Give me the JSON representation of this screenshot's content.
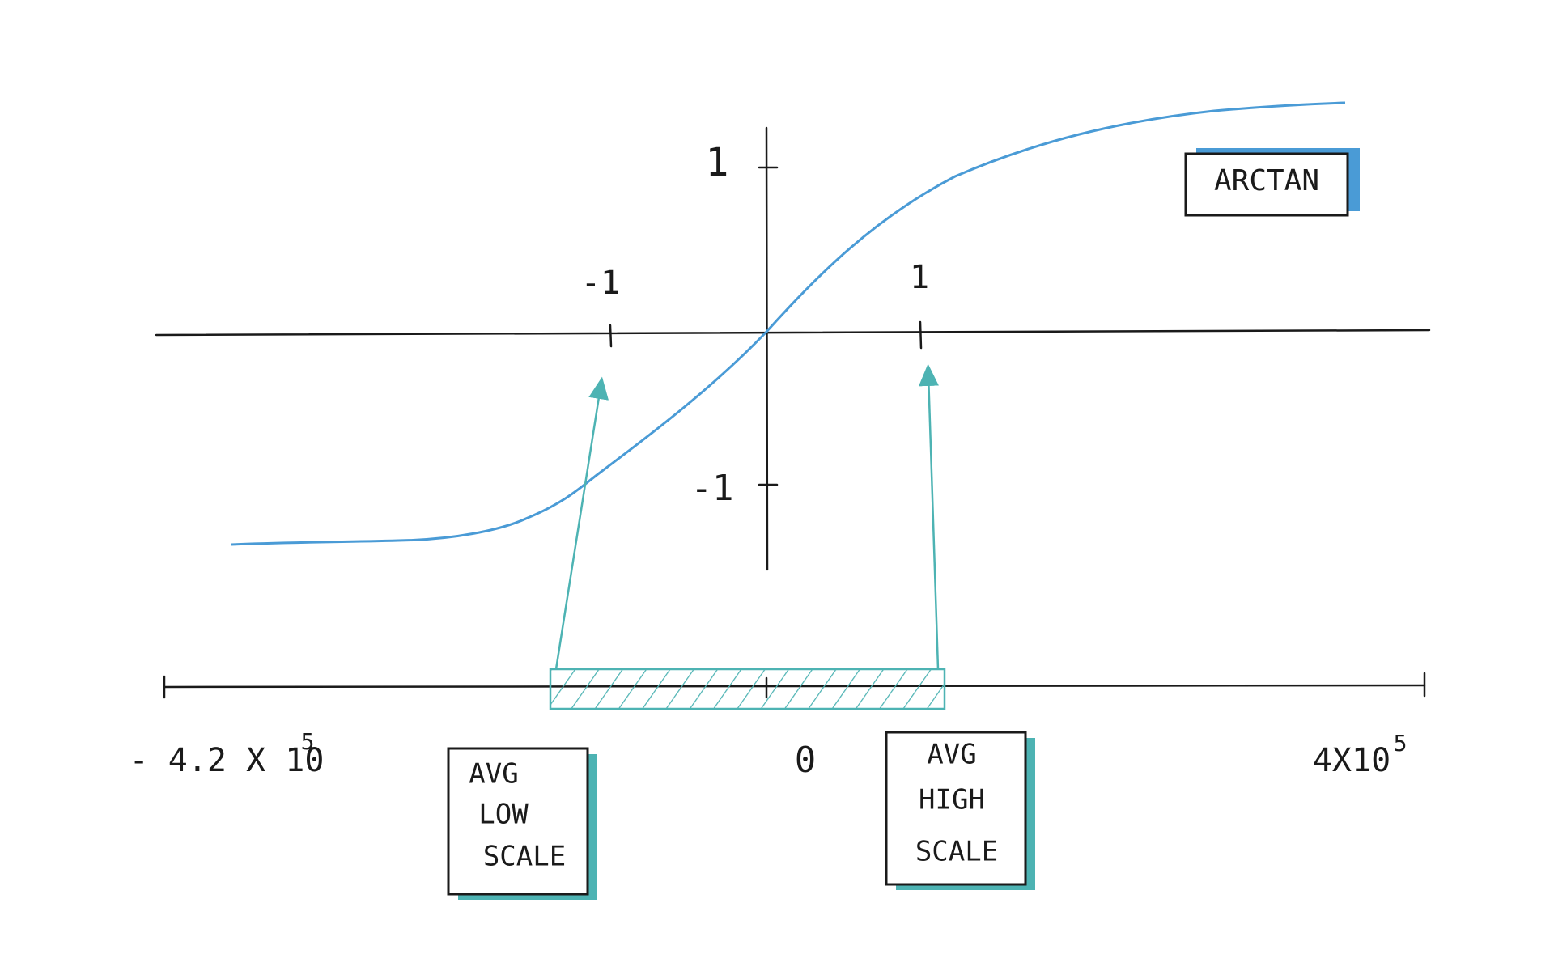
{
  "y_axis": {
    "ticks": [
      "1",
      "-1"
    ]
  },
  "x_axis": {
    "ticks": [
      "-1",
      "1"
    ]
  },
  "curve_label": "ARCTAN",
  "input_axis": {
    "min": {
      "base": "- 4.2 X 10",
      "exponent": "5"
    },
    "mid": "0",
    "max": {
      "base": "4X10",
      "exponent": "5"
    }
  },
  "boxes": [
    {
      "lines": [
        "AVG",
        "LOW",
        "SCALE"
      ]
    },
    {
      "lines": [
        "AVG",
        "HIGH",
        "SCALE"
      ]
    }
  ]
}
